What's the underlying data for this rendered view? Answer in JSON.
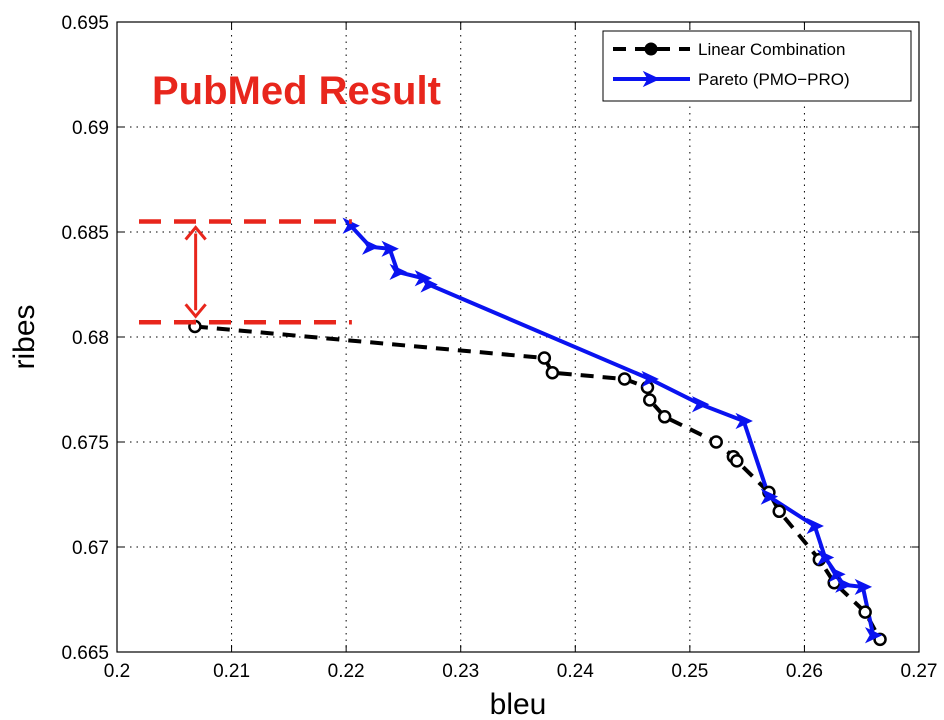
{
  "chart_data": {
    "type": "line",
    "xlabel": "bleu",
    "ylabel": "ribes",
    "xlim": [
      0.2,
      0.27
    ],
    "ylim": [
      0.665,
      0.695
    ],
    "x_ticks": [
      "0.2",
      "0.21",
      "0.22",
      "0.23",
      "0.24",
      "0.25",
      "0.26",
      "0.27"
    ],
    "y_ticks": [
      "0.665",
      "0.67",
      "0.675",
      "0.68",
      "0.685",
      "0.69",
      "0.695"
    ],
    "grid": true,
    "legend_position": "top-right",
    "annotation": "PubMed Result",
    "annotation_color": "#e8261c",
    "series": [
      {
        "name": "Linear Combination",
        "color": "#000000",
        "line_style": "dashed",
        "marker": "circle",
        "x": [
          0.2068,
          0.2373,
          0.238,
          0.2443,
          0.2463,
          0.2465,
          0.2478,
          0.2523,
          0.2538,
          0.2541,
          0.2569,
          0.2578,
          0.2613,
          0.2626,
          0.2653,
          0.2666
        ],
        "y": [
          0.6805,
          0.679,
          0.6783,
          0.678,
          0.6776,
          0.677,
          0.6762,
          0.675,
          0.6743,
          0.6741,
          0.6726,
          0.6717,
          0.6694,
          0.6683,
          0.6669,
          0.6656
        ]
      },
      {
        "name": "Pareto (PMO−PRO)",
        "color": "#0a13f0",
        "line_style": "solid",
        "marker": "triangle-right",
        "x": [
          0.2204,
          0.2221,
          0.2238,
          0.2245,
          0.2267,
          0.2272,
          0.2465,
          0.2509,
          0.2547,
          0.2569,
          0.2609,
          0.2618,
          0.2628,
          0.2634,
          0.2651,
          0.266
        ],
        "y": [
          0.6853,
          0.6843,
          0.6842,
          0.6831,
          0.6828,
          0.6825,
          0.678,
          0.6768,
          0.676,
          0.6724,
          0.671,
          0.6695,
          0.6687,
          0.6682,
          0.6681,
          0.6658
        ]
      }
    ],
    "highlight": {
      "color": "#e8261c",
      "y_upper": 0.6855,
      "y_lower": 0.6807,
      "x_from": 0.2,
      "x_to": 0.2205,
      "arrow_x": 0.2073
    }
  }
}
